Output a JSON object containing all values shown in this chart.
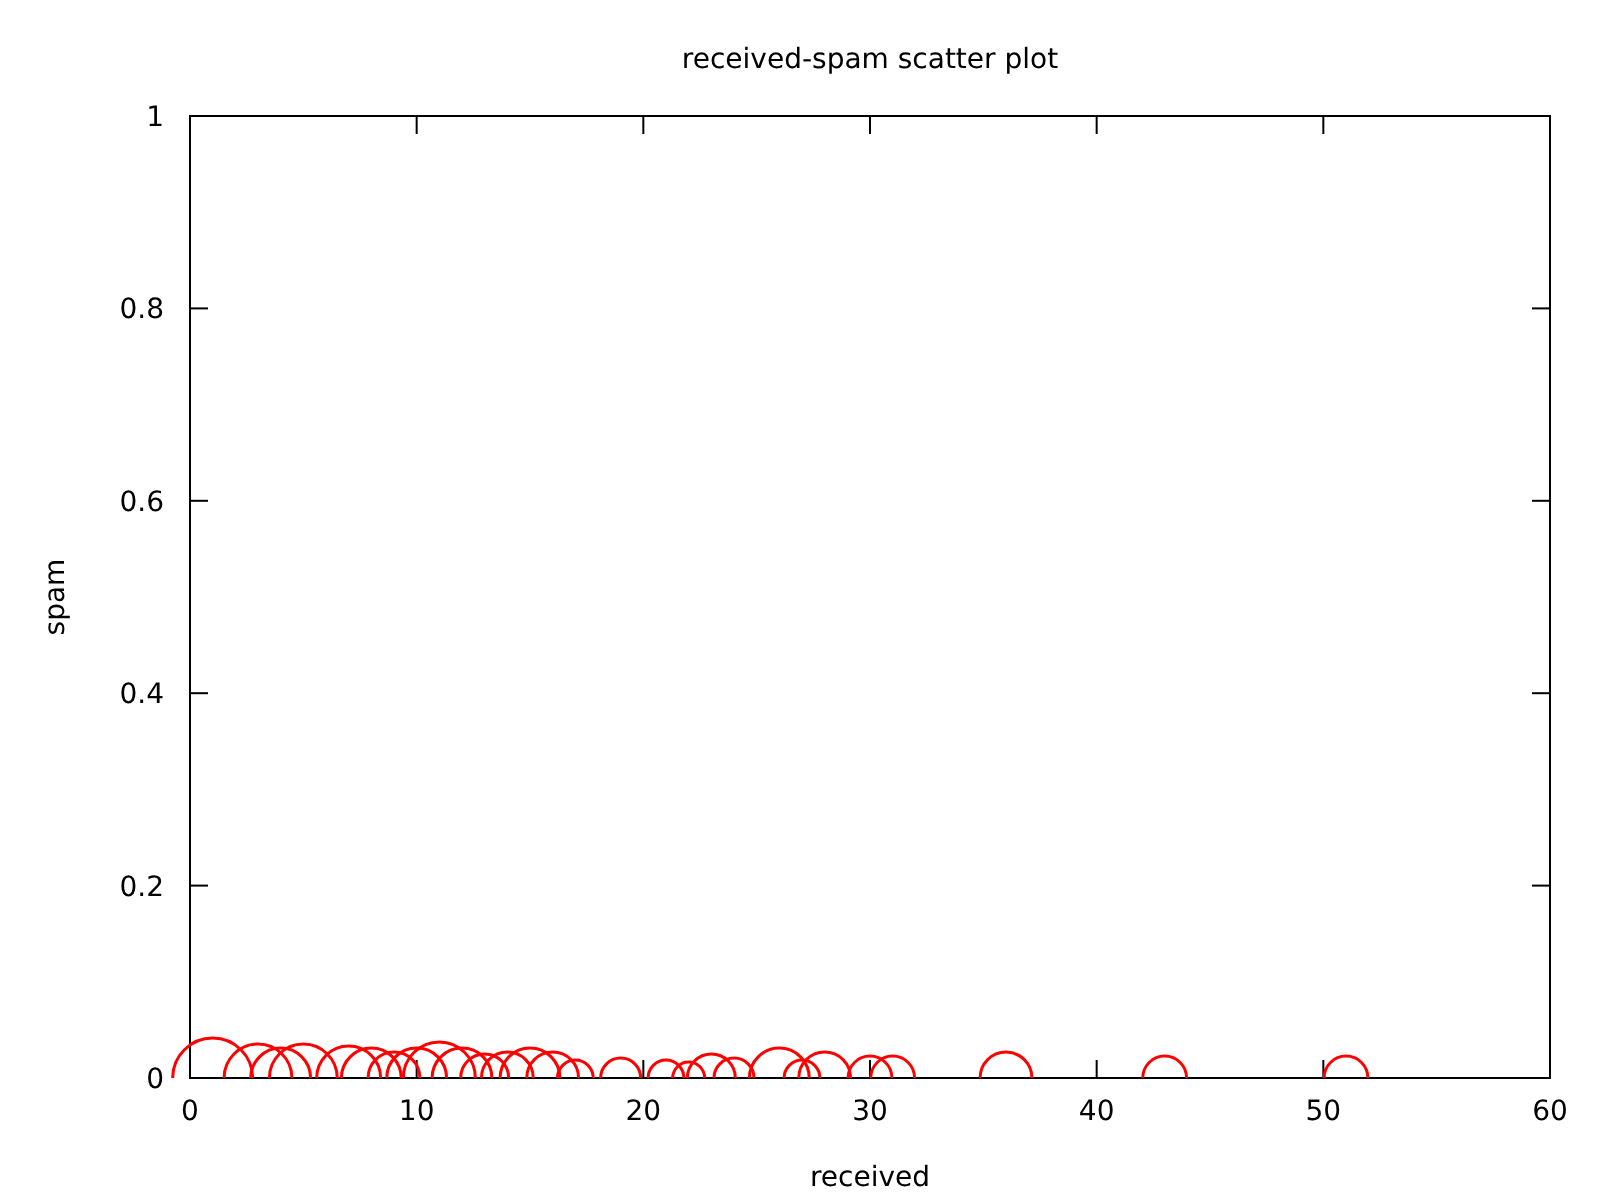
{
  "chart_data": {
    "type": "bubble",
    "title": "received-spam scatter plot",
    "xlabel": "received",
    "ylabel": "spam",
    "x": [
      1,
      3,
      4,
      5,
      7,
      8,
      9,
      10,
      11,
      12,
      13,
      14,
      15,
      16,
      17,
      19,
      21,
      22,
      23,
      24,
      26,
      27,
      28,
      30,
      31,
      36,
      43,
      51
    ],
    "values": [
      0,
      0,
      0,
      0,
      0,
      0,
      0,
      0,
      0,
      0,
      0,
      0,
      0,
      0,
      0,
      0,
      0,
      0,
      0,
      0,
      0,
      0,
      0,
      0,
      0,
      0,
      0,
      0
    ],
    "sizes": [
      1,
      0.72,
      0.56,
      0.72,
      0.64,
      0.56,
      0.42,
      0.56,
      0.81,
      0.56,
      0.36,
      0.42,
      0.56,
      0.42,
      0.2,
      0.25,
      0.2,
      0.16,
      0.36,
      0.25,
      0.56,
      0.2,
      0.42,
      0.3,
      0.3,
      0.42,
      0.3,
      0.3
    ],
    "color": "#ff0000",
    "marker": "circle",
    "xlim": [
      0,
      60
    ],
    "xticks": [
      0,
      10,
      20,
      30,
      40,
      50,
      60
    ],
    "ylim": [
      0,
      1
    ],
    "yticks": [
      0,
      0.2,
      0.4,
      0.6,
      0.8,
      1
    ],
    "grid": false
  }
}
